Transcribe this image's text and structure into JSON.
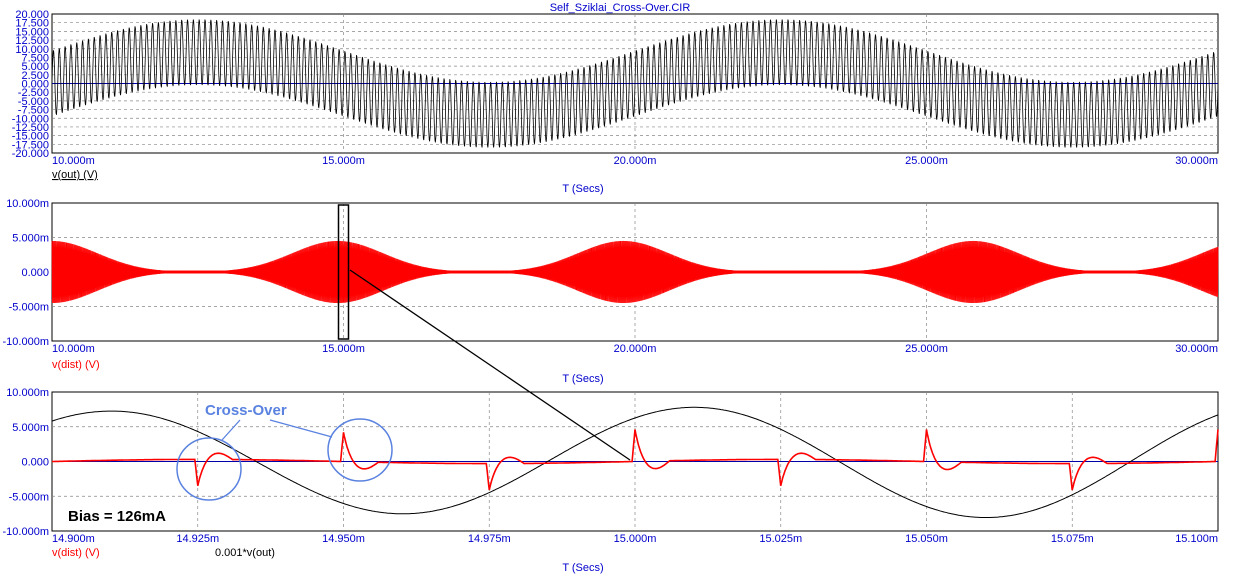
{
  "title": "Self_Sziklai_Cross-Over.CIR",
  "annotations": {
    "crossover_label": "Cross-Over",
    "bias_label": "Bias = 126mA"
  },
  "chart_data": [
    {
      "type": "line",
      "panel": "top",
      "xlabel": "T (Secs)",
      "ylabel": "",
      "xlim": [
        0.01,
        0.03
      ],
      "ylim": [
        -20,
        20
      ],
      "x_ticks": [
        "10.000m",
        "15.000m",
        "20.000m",
        "25.000m",
        "30.000m"
      ],
      "y_ticks": [
        "20.000",
        "17.500",
        "15.000",
        "12.500",
        "10.000",
        "7.500",
        "5.000",
        "2.500",
        "0.000",
        "-2.500",
        "-5.000",
        "-7.500",
        "-10.000",
        "-12.500",
        "-15.000",
        "-17.500",
        "-20.000"
      ],
      "grid": true,
      "series": [
        {
          "name": "v(out) (V)",
          "color": "#000000",
          "description_values": {
            "carrier_hz": 10000,
            "envelope_hz": 100,
            "carrier_peak": 18,
            "envelope_peak_time": 0.0125
          }
        }
      ]
    },
    {
      "type": "line",
      "panel": "middle",
      "xlabel": "T (Secs)",
      "ylabel": "",
      "xlim": [
        0.01,
        0.03
      ],
      "ylim": [
        -0.01,
        0.01
      ],
      "x_ticks": [
        "10.000m",
        "15.000m",
        "20.000m",
        "25.000m",
        "30.000m"
      ],
      "y_ticks": [
        "10.000m",
        "5.000m",
        "0.000",
        "-5.000m",
        "-10.000m"
      ],
      "grid": true,
      "series": [
        {
          "name": "v(dist) (V)",
          "color": "#ff0000",
          "description_values": {
            "peak": 0.0045,
            "burst_centers": [
              0.01,
              0.0149,
              0.0198,
              0.0258,
              0.0305
            ]
          }
        }
      ]
    },
    {
      "type": "line",
      "panel": "bottom",
      "xlabel": "T (Secs)",
      "ylabel": "",
      "xlim": [
        0.0149,
        0.0151
      ],
      "ylim": [
        -0.01,
        0.01
      ],
      "x_ticks": [
        "14.900m",
        "14.925m",
        "14.950m",
        "14.975m",
        "15.000m",
        "15.025m",
        "15.050m",
        "15.075m",
        "15.100m"
      ],
      "y_ticks": [
        "10.000m",
        "5.000m",
        "0.000",
        "-5.000m",
        "-10.000m"
      ],
      "grid": true,
      "series": [
        {
          "name": "v(dist) (V)",
          "color": "#ff0000",
          "spikes": [
            {
              "t": 0.014925,
              "v": -0.0038
            },
            {
              "t": 0.01495,
              "v": 0.0042
            },
            {
              "t": 0.014975,
              "v": -0.0038
            },
            {
              "t": 0.015,
              "v": 0.0046
            },
            {
              "t": 0.015025,
              "v": -0.0038
            },
            {
              "t": 0.01505,
              "v": 0.0046
            },
            {
              "t": 0.015075,
              "v": -0.0038
            },
            {
              "t": 0.0151,
              "v": 0.0046
            }
          ]
        },
        {
          "name": "0.001*v(out)",
          "color": "#000000",
          "amplitude": 0.0072,
          "freq_hz": 10000,
          "first_peak_t": 0.01491
        }
      ]
    }
  ],
  "legend": {
    "top": "v(out) (V)",
    "middle": "v(dist) (V)",
    "bottom_red": "v(dist) (V)",
    "bottom_black": "0.001*v(out)"
  }
}
